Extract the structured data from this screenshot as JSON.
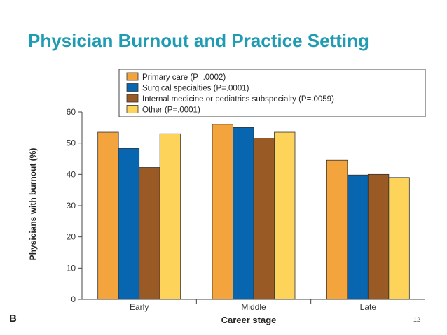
{
  "slide": {
    "title": "Physician Burnout and Practice Setting",
    "page_number": "12",
    "panel_label": "B"
  },
  "chart_data": {
    "type": "bar",
    "title": "",
    "xlabel": "Career stage",
    "ylabel": "Physicians with burnout (%)",
    "ylim": [
      0,
      60
    ],
    "yticks": [
      0,
      10,
      20,
      30,
      40,
      50,
      60
    ],
    "categories": [
      "Early",
      "Middle",
      "Late"
    ],
    "legend_position": "top-right",
    "grid": false,
    "series": [
      {
        "name": "Primary care (P=.0002)",
        "color": "#f4a43c",
        "values": [
          53.5,
          56,
          44.5
        ]
      },
      {
        "name": "Surgical specialties (P=.0001)",
        "color": "#0866b0",
        "values": [
          48.3,
          55,
          39.8
        ]
      },
      {
        "name": "Internal medicine or pediatrics subspecialty (P=.0059)",
        "color": "#9a5a26",
        "values": [
          42.2,
          51.6,
          40
        ]
      },
      {
        "name": "Other (P=.0001)",
        "color": "#fdd35a",
        "values": [
          53,
          53.5,
          39
        ]
      }
    ]
  }
}
